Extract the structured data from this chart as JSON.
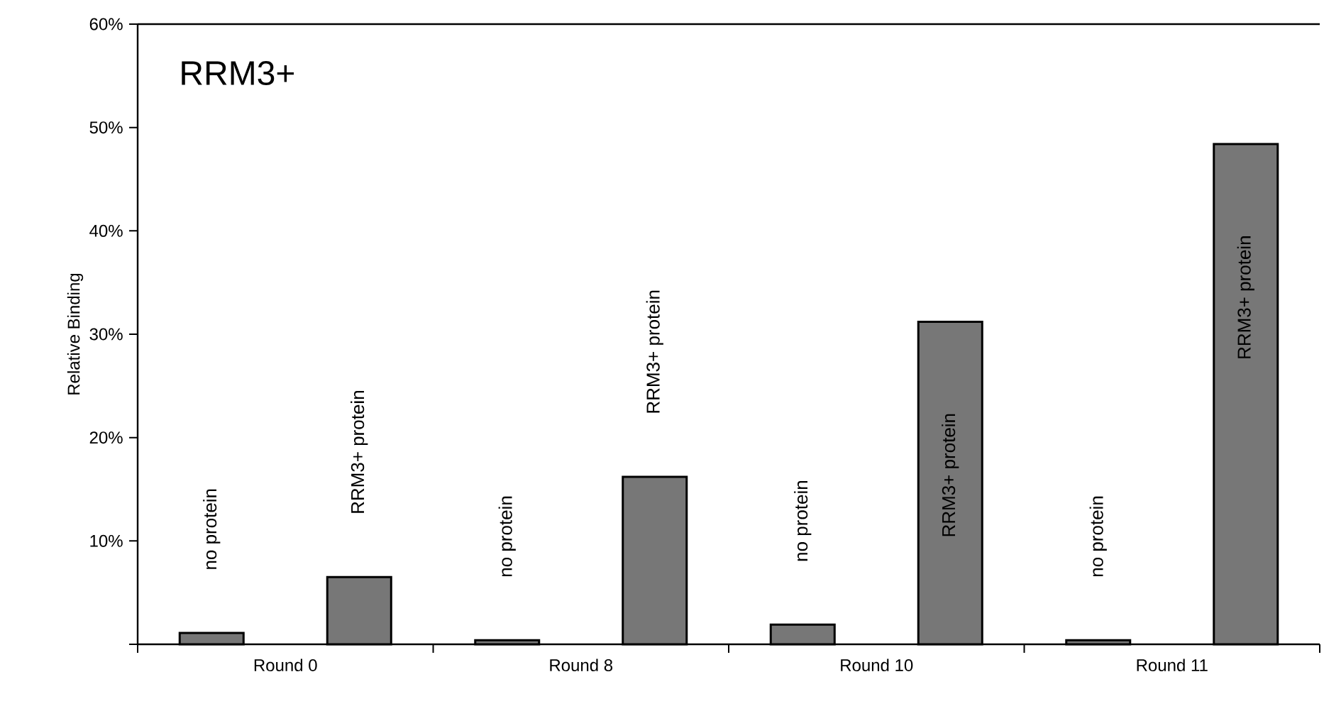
{
  "chart_data": {
    "type": "bar",
    "title": "RRM3+",
    "ylabel": "Relative Binding",
    "categories": [
      "Round 0",
      "Round 8",
      "Round 10",
      "Round 11"
    ],
    "series": [
      {
        "name": "no protein",
        "color": "#777777",
        "values": [
          1.1,
          0.4,
          1.9,
          0.4
        ]
      },
      {
        "name": "RRM3+ protein",
        "color": "#777777",
        "values": [
          6.5,
          16.2,
          31.2,
          48.4
        ]
      }
    ],
    "ylim": [
      0,
      60
    ],
    "yticks": [
      {
        "value": 0,
        "label": null
      },
      {
        "value": 10,
        "label": "10%"
      },
      {
        "value": 20,
        "label": "20%"
      },
      {
        "value": 30,
        "label": "30%"
      },
      {
        "value": 40,
        "label": "40%"
      },
      {
        "value": 50,
        "label": "50%"
      },
      {
        "value": 60,
        "label": "60%"
      }
    ],
    "grid": false
  }
}
